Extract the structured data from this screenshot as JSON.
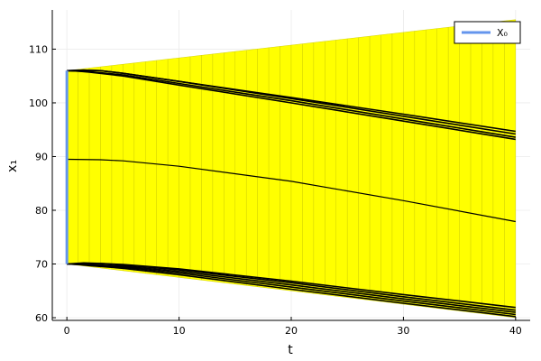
{
  "chart_data": {
    "type": "line",
    "xlabel": "t",
    "ylabel": "x₁",
    "xlim": [
      -1.3,
      41.3
    ],
    "ylim": [
      59.5,
      117.3
    ],
    "xticks": [
      0,
      10,
      20,
      30,
      40
    ],
    "yticks": [
      60,
      70,
      80,
      90,
      100,
      110
    ],
    "grid": true,
    "legend_position": "top-right",
    "legend": [
      {
        "name": "X₀",
        "color": "#6495ED"
      }
    ],
    "colors": {
      "band": "#FFFF00",
      "band_edge": "#C8C800",
      "trajectory": "#000000",
      "initial_set": "#6495ED",
      "grid": "#ebebeb"
    },
    "reach_band": {
      "t": [
        0,
        40
      ],
      "lower": [
        70,
        60
      ],
      "upper": [
        106,
        115.5
      ],
      "segment_width": 1
    },
    "initial_set": {
      "t": 0,
      "y": [
        70,
        106
      ]
    },
    "series": [
      {
        "t": [
          0,
          1.5,
          3,
          5,
          10,
          20,
          30,
          40
        ],
        "y": [
          106,
          106.1,
          106,
          105.5,
          104,
          101,
          97.9,
          94.7
        ]
      },
      {
        "t": [
          0,
          1.5,
          3,
          5,
          10,
          20,
          30,
          40
        ],
        "y": [
          106,
          106.1,
          106,
          105.5,
          104,
          100.8,
          97.5,
          94.2
        ]
      },
      {
        "t": [
          0,
          1,
          2,
          5,
          10,
          20,
          30,
          40
        ],
        "y": [
          106,
          105.9,
          105.8,
          105.2,
          103.6,
          100.4,
          97,
          93.6
        ]
      },
      {
        "t": [
          0,
          1,
          2,
          5,
          10,
          20,
          30,
          40
        ],
        "y": [
          106,
          105.9,
          105.7,
          105,
          103.3,
          100,
          96.6,
          93.2
        ]
      },
      {
        "t": [
          0,
          3,
          5,
          10,
          20,
          30,
          40
        ],
        "y": [
          89.5,
          89.4,
          89.2,
          88.2,
          85.4,
          81.8,
          77.9
        ]
      },
      {
        "t": [
          0,
          1.5,
          3,
          5,
          10,
          20,
          30,
          40
        ],
        "y": [
          70,
          70.2,
          70.1,
          69.9,
          69.1,
          66.8,
          64.3,
          61.9
        ]
      },
      {
        "t": [
          0,
          1.5,
          3,
          5,
          10,
          20,
          30,
          40
        ],
        "y": [
          70,
          70.1,
          70.1,
          69.8,
          68.9,
          66.5,
          63.9,
          61.4
        ]
      },
      {
        "t": [
          0,
          1,
          2,
          5,
          10,
          20,
          30,
          40
        ],
        "y": [
          70,
          70,
          69.9,
          69.6,
          68.6,
          66.1,
          63.5,
          61
        ]
      },
      {
        "t": [
          0,
          1,
          2,
          5,
          10,
          20,
          30,
          40
        ],
        "y": [
          70,
          69.9,
          69.8,
          69.4,
          68.3,
          65.7,
          63.1,
          60.6
        ]
      },
      {
        "t": [
          0,
          1,
          2,
          5,
          10,
          20,
          30,
          40
        ],
        "y": [
          70,
          69.9,
          69.7,
          69.2,
          68,
          65.3,
          62.7,
          60.2
        ]
      }
    ]
  }
}
